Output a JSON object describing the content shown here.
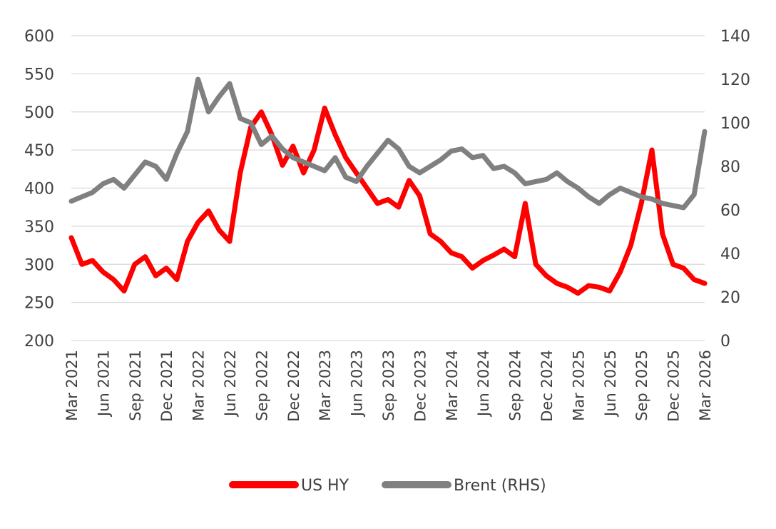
{
  "chart_data": {
    "type": "line",
    "title": "",
    "xlabel": "",
    "ylabel": "",
    "y2label": "",
    "x_ticks": [
      "Mar 2021",
      "Jun 2021",
      "Sep 2021",
      "Dec 2021",
      "Mar 2022",
      "Jun 2022",
      "Sep 2022",
      "Dec 2022",
      "Mar 2023",
      "Jun 2023",
      "Sep 2023",
      "Dec 2023",
      "Mar 2024",
      "Jun 2024",
      "Sep 2024",
      "Dec 2024",
      "Mar 2025",
      "Jun 2025",
      "Sep 2025",
      "Dec 2025",
      "Mar 2026"
    ],
    "y_left": {
      "min": 200,
      "max": 600,
      "ticks": [
        200,
        250,
        300,
        350,
        400,
        450,
        500,
        550,
        600
      ]
    },
    "y_right": {
      "min": 0,
      "max": 140,
      "ticks": [
        0,
        20,
        40,
        60,
        80,
        100,
        120,
        140
      ]
    },
    "grid": true,
    "legend_position": "bottom",
    "x": [
      "2021-03",
      "2021-04",
      "2021-05",
      "2021-06",
      "2021-07",
      "2021-08",
      "2021-09",
      "2021-10",
      "2021-11",
      "2021-12",
      "2022-01",
      "2022-02",
      "2022-03",
      "2022-04",
      "2022-05",
      "2022-06",
      "2022-07",
      "2022-08",
      "2022-09",
      "2022-10",
      "2022-11",
      "2022-12",
      "2023-01",
      "2023-02",
      "2023-03",
      "2023-04",
      "2023-05",
      "2023-06",
      "2023-07",
      "2023-08",
      "2023-09",
      "2023-10",
      "2023-11",
      "2023-12",
      "2024-01",
      "2024-02",
      "2024-03",
      "2024-04",
      "2024-05",
      "2024-06",
      "2024-07",
      "2024-08",
      "2024-09",
      "2024-10",
      "2024-11",
      "2024-12",
      "2025-01",
      "2025-02",
      "2025-03",
      "2025-04",
      "2025-05",
      "2025-06",
      "2025-07",
      "2025-08",
      "2025-09",
      "2025-10",
      "2025-11",
      "2025-12",
      "2026-01",
      "2026-02",
      "2026-03"
    ],
    "series": [
      {
        "name": "US HY",
        "axis": "left",
        "color": "#ff0000",
        "values": [
          335,
          300,
          305,
          290,
          280,
          265,
          300,
          310,
          285,
          295,
          280,
          330,
          355,
          370,
          345,
          330,
          420,
          480,
          500,
          470,
          430,
          455,
          420,
          450,
          505,
          470,
          440,
          420,
          400,
          380,
          385,
          375,
          410,
          390,
          340,
          330,
          315,
          310,
          295,
          305,
          312,
          320,
          310,
          380,
          300,
          285,
          275,
          270,
          262,
          272,
          270,
          265,
          290,
          325,
          380,
          450,
          340,
          300,
          295,
          280,
          275
        ]
      },
      {
        "name": "Brent (RHS)",
        "axis": "right",
        "color": "#808080",
        "values": [
          64,
          66,
          68,
          72,
          74,
          70,
          76,
          82,
          80,
          74,
          86,
          96,
          120,
          105,
          112,
          118,
          102,
          100,
          90,
          94,
          88,
          84,
          82,
          80,
          78,
          84,
          75,
          73,
          80,
          86,
          92,
          88,
          80,
          77,
          80,
          83,
          87,
          88,
          84,
          85,
          79,
          80,
          77,
          72,
          73,
          74,
          77,
          73,
          70,
          66,
          63,
          67,
          70,
          68,
          66,
          65,
          63,
          62,
          61,
          67,
          96
        ]
      }
    ]
  }
}
